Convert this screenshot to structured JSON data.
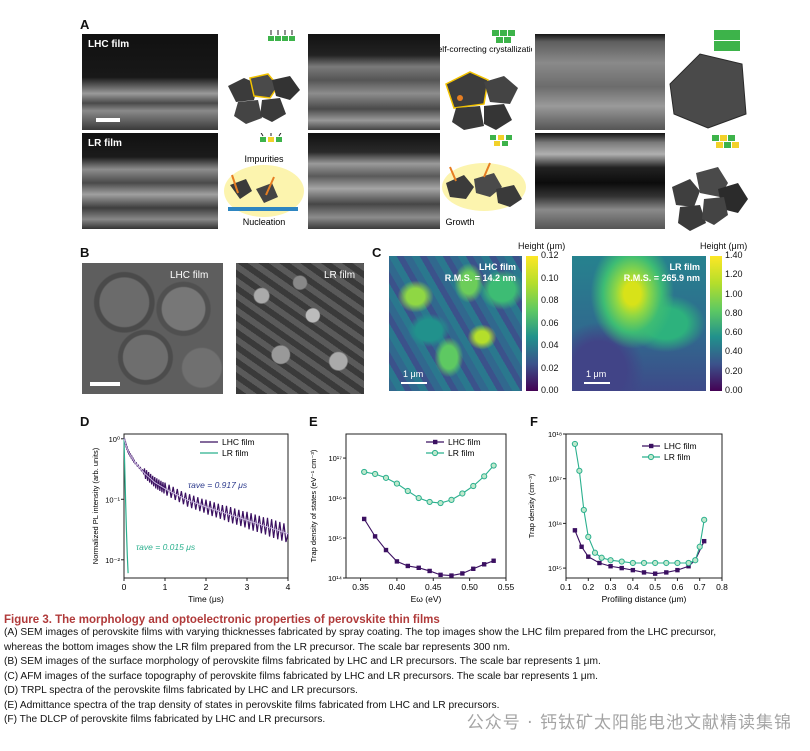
{
  "panels": {
    "A": {
      "label": "A",
      "top_tag": "LHC film",
      "bottom_tag": "LR film",
      "text_self_correcting": "Self-correcting crystallization",
      "text_impurities": "Impurities",
      "text_nucleation": "Nucleation",
      "text_growth": "Growth"
    },
    "B": {
      "label": "B",
      "left_tag": "LHC film",
      "right_tag": "LR film"
    },
    "C": {
      "label": "C",
      "left": {
        "title": "LHC film",
        "rms": "R.M.S. = 14.2 nm",
        "scale": "1 μm",
        "cbar_title": "Height (μm)",
        "ticks": [
          "0.12",
          "0.10",
          "0.08",
          "0.06",
          "0.04",
          "0.02",
          "0.00"
        ]
      },
      "right": {
        "title": "LR film",
        "rms": "R.M.S. = 265.9 nm",
        "scale": "1 μm",
        "cbar_title": "Height (μm)",
        "ticks": [
          "1.40",
          "1.20",
          "1.00",
          "0.80",
          "0.60",
          "0.40",
          "0.20",
          "0.00"
        ]
      }
    },
    "D": {
      "label": "D"
    },
    "E": {
      "label": "E"
    },
    "F": {
      "label": "F"
    }
  },
  "chart_data": [
    {
      "id": "D",
      "type": "line",
      "title": "",
      "xlabel": "Time (μs)",
      "ylabel": "Normalized PL intensity (arb. units)",
      "xlim": [
        0,
        4
      ],
      "ylim_log": [
        0.005,
        1.2
      ],
      "x_ticks": [
        "0",
        "1",
        "2",
        "3",
        "4"
      ],
      "y_ticks": [
        "10⁰",
        "10⁻¹",
        "10⁻²"
      ],
      "legend": [
        "LHC film",
        "LR film"
      ],
      "annotations": [
        "τave = 0.917 μs",
        "τave = 0.015 μs"
      ],
      "series": [
        {
          "name": "LHC film",
          "color": "#3b1061",
          "x": [
            0,
            0.1,
            0.25,
            0.5,
            0.75,
            1,
            1.5,
            2,
            2.5,
            3,
            3.5,
            4
          ],
          "values": [
            1,
            0.62,
            0.42,
            0.27,
            0.19,
            0.15,
            0.1,
            0.075,
            0.058,
            0.045,
            0.035,
            0.027
          ]
        },
        {
          "name": "LR film",
          "color": "#2bb08e",
          "x": [
            0,
            0.02,
            0.04,
            0.06,
            0.08,
            0.1
          ],
          "values": [
            1,
            0.3,
            0.09,
            0.03,
            0.012,
            0.006
          ]
        }
      ]
    },
    {
      "id": "E",
      "type": "line",
      "xlabel": "Eω (eV)",
      "ylabel": "Trap density of states (eV⁻¹ cm⁻³)",
      "xlim": [
        0.33,
        0.55
      ],
      "x_ticks": [
        "0.35",
        "0.40",
        "0.45",
        "0.50",
        "0.55"
      ],
      "y_ticks": [
        "10¹⁷",
        "10¹⁶",
        "10¹⁵",
        "10¹⁴"
      ],
      "legend": [
        "LHC film",
        "LR film"
      ],
      "series": [
        {
          "name": "LHC film",
          "color": "#3b1061",
          "x": [
            0.355,
            0.37,
            0.385,
            0.4,
            0.415,
            0.43,
            0.445,
            0.46,
            0.475,
            0.49,
            0.505,
            0.52,
            0.533
          ],
          "values": [
            3000000000000000.0,
            1100000000000000.0,
            500000000000000.0,
            260000000000000.0,
            200000000000000.0,
            180000000000000.0,
            150000000000000.0,
            120000000000000.0,
            115000000000000.0,
            130000000000000.0,
            170000000000000.0,
            220000000000000.0,
            270000000000000.0
          ]
        },
        {
          "name": "LR film",
          "color": "#2bb08e",
          "x": [
            0.355,
            0.37,
            0.385,
            0.4,
            0.415,
            0.43,
            0.445,
            0.46,
            0.475,
            0.49,
            0.505,
            0.52,
            0.533
          ],
          "values": [
            4.5e+16,
            4e+16,
            3.2e+16,
            2.3e+16,
            1.5e+16,
            1e+16,
            8000000000000000.0,
            7500000000000000.0,
            9000000000000000.0,
            1.3e+16,
            2e+16,
            3.5e+16,
            6.5e+16
          ]
        }
      ]
    },
    {
      "id": "F",
      "type": "line",
      "xlabel": "Profiling distance (μm)",
      "ylabel": "Trap density (cm⁻³)",
      "xlim": [
        0.1,
        0.8
      ],
      "x_ticks": [
        "0.1",
        "0.2",
        "0.3",
        "0.4",
        "0.5",
        "0.6",
        "0.7",
        "0.8"
      ],
      "y_ticks": [
        "10¹⁸",
        "10¹⁷",
        "10¹⁶",
        "10¹⁵"
      ],
      "legend": [
        "LHC film",
        "LR film"
      ],
      "series": [
        {
          "name": "LHC film",
          "color": "#3b1061",
          "x": [
            0.14,
            0.17,
            0.2,
            0.25,
            0.3,
            0.35,
            0.4,
            0.45,
            0.5,
            0.55,
            0.6,
            0.65,
            0.68,
            0.72
          ],
          "values": [
            7000000000000000.0,
            3000000000000000.0,
            1800000000000000.0,
            1300000000000000.0,
            1100000000000000.0,
            1000000000000000.0,
            900000000000000.0,
            800000000000000.0,
            750000000000000.0,
            800000000000000.0,
            900000000000000.0,
            1100000000000000.0,
            1500000000000000.0,
            4000000000000000.0
          ]
        },
        {
          "name": "LR film",
          "color": "#2bb08e",
          "x": [
            0.14,
            0.16,
            0.18,
            0.2,
            0.23,
            0.26,
            0.3,
            0.35,
            0.4,
            0.45,
            0.5,
            0.55,
            0.6,
            0.65,
            0.68,
            0.7,
            0.72
          ],
          "values": [
            6e+17,
            1.5e+17,
            2e+16,
            5000000000000000.0,
            2200000000000000.0,
            1700000000000000.0,
            1500000000000000.0,
            1400000000000000.0,
            1300000000000000.0,
            1300000000000000.0,
            1300000000000000.0,
            1300000000000000.0,
            1300000000000000.0,
            1300000000000000.0,
            1500000000000000.0,
            3000000000000000.0,
            1.2e+16
          ]
        }
      ]
    }
  ],
  "caption": {
    "title": "Figure 3.  The morphology and optoelectronic properties of perovskite thin films",
    "lines": [
      "(A) SEM images of perovskite films with varying thicknesses fabricated by spray coating. The top images show the LHC film prepared from the LHC precursor,",
      "whereas the bottom images show the LR film prepared from the LR precursor. The scale bar represents 300 nm.",
      "(B) SEM images of the surface morphology of perovskite films fabricated by LHC and LR precursors. The scale bar represents 1 μm.",
      "(C) AFM images of the surface topography of perovskite films fabricated by LHC and LR precursors. The scale bar represents 1 μm.",
      "(D) TRPL spectra of the perovskite films fabricated by LHC and LR precursors.",
      "(E) Admittance spectra of the trap density of states in perovskite films fabricated from LHC and LR precursors.",
      "(F) The DLCP of perovskite films fabricated by LHC and LR precursors."
    ]
  },
  "watermark": "公众号 · 钙钛矿太阳能电池文献精读集锦"
}
